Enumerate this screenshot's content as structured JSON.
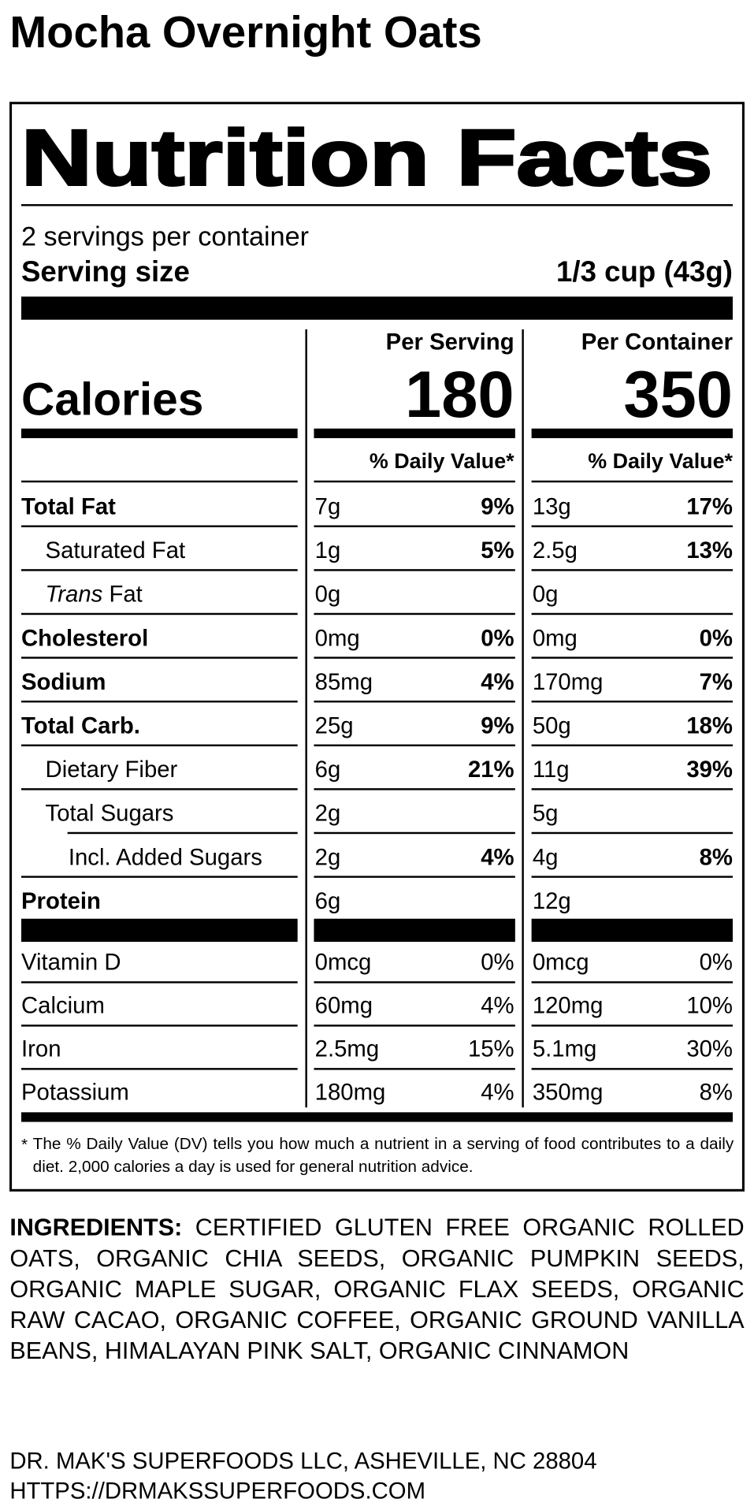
{
  "title": "Mocha Overnight Oats",
  "label": {
    "heading": "Nutrition Facts",
    "servings": "2 servings per container",
    "serving_size_label": "Serving size",
    "serving_size": "1/3 cup (43g)",
    "calories_label": "Calories",
    "columns": [
      {
        "heading": "Per Serving",
        "calories": "180",
        "dv_heading": "% Daily Value*"
      },
      {
        "heading": "Per Container",
        "calories": "350",
        "dv_heading": "% Daily Value*"
      }
    ],
    "rows": [
      {
        "name": "Total Fat",
        "bold": true,
        "indent": 0,
        "values": [
          {
            "amount": "7g",
            "dv": "9%"
          },
          {
            "amount": "13g",
            "dv": "17%"
          }
        ]
      },
      {
        "name": "Saturated Fat",
        "bold": false,
        "indent": 1,
        "values": [
          {
            "amount": "1g",
            "dv": "5%"
          },
          {
            "amount": "2.5g",
            "dv": "13%"
          }
        ]
      },
      {
        "italic": "Trans",
        "name": " Fat",
        "bold": false,
        "indent": 1,
        "values": [
          {
            "amount": "0g"
          },
          {
            "amount": "0g"
          }
        ]
      },
      {
        "name": "Cholesterol",
        "bold": true,
        "indent": 0,
        "values": [
          {
            "amount": "0mg",
            "dv": "0%"
          },
          {
            "amount": "0mg",
            "dv": "0%"
          }
        ]
      },
      {
        "name": "Sodium",
        "bold": true,
        "indent": 0,
        "values": [
          {
            "amount": "85mg",
            "dv": "4%"
          },
          {
            "amount": "170mg",
            "dv": "7%"
          }
        ]
      },
      {
        "name": "Total Carb.",
        "bold": true,
        "indent": 0,
        "values": [
          {
            "amount": "25g",
            "dv": "9%"
          },
          {
            "amount": "50g",
            "dv": "18%"
          }
        ]
      },
      {
        "name": "Dietary Fiber",
        "bold": false,
        "indent": 1,
        "values": [
          {
            "amount": "6g",
            "dv": "21%"
          },
          {
            "amount": "11g",
            "dv": "39%"
          }
        ]
      },
      {
        "name": "Total Sugars",
        "bold": false,
        "indent": 1,
        "values": [
          {
            "amount": "2g"
          },
          {
            "amount": "5g"
          }
        ]
      },
      {
        "name": "Incl. Added Sugars",
        "bold": false,
        "indent": 2,
        "values": [
          {
            "amount": "2g",
            "dv": "4%"
          },
          {
            "amount": "4g",
            "dv": "8%"
          }
        ]
      },
      {
        "name": "Protein",
        "bold": true,
        "indent": 0,
        "values": [
          {
            "amount": "6g"
          },
          {
            "amount": "12g"
          }
        ]
      }
    ],
    "vitamins": [
      {
        "name": "Vitamin D",
        "values": [
          {
            "amount": "0mcg",
            "dv": "0%"
          },
          {
            "amount": "0mcg",
            "dv": "0%"
          }
        ]
      },
      {
        "name": "Calcium",
        "values": [
          {
            "amount": "60mg",
            "dv": "4%"
          },
          {
            "amount": "120mg",
            "dv": "10%"
          }
        ]
      },
      {
        "name": "Iron",
        "values": [
          {
            "amount": "2.5mg",
            "dv": "15%"
          },
          {
            "amount": "5.1mg",
            "dv": "30%"
          }
        ]
      },
      {
        "name": "Potassium",
        "values": [
          {
            "amount": "180mg",
            "dv": "4%"
          },
          {
            "amount": "350mg",
            "dv": "8%"
          }
        ]
      }
    ],
    "footnote_mark": "*",
    "footnote": "The % Daily Value (DV) tells you how much a nutrient in a serving of food contributes to a daily diet. 2,000 calories a day is used for general nutrition advice."
  },
  "ingredients_label": "INGREDIENTS:",
  "ingredients": "CERTIFIED GLUTEN FREE ORGANIC ROLLED OATS, ORGANIC CHIA SEEDS, ORGANIC PUMPKIN SEEDS, ORGANIC MAPLE SUGAR, ORGANIC FLAX SEEDS, ORGANIC RAW CACAO, ORGANIC COFFEE, ORGANIC GROUND VANILLA BEANS, HIMALAYAN PINK SALT, ORGANIC CINNAMON",
  "address": [
    "DR. MAK'S SUPERFOODS LLC, ASHEVILLE, NC 28804",
    "HTTPS://DRMAKSSUPERFOODS.COM"
  ]
}
